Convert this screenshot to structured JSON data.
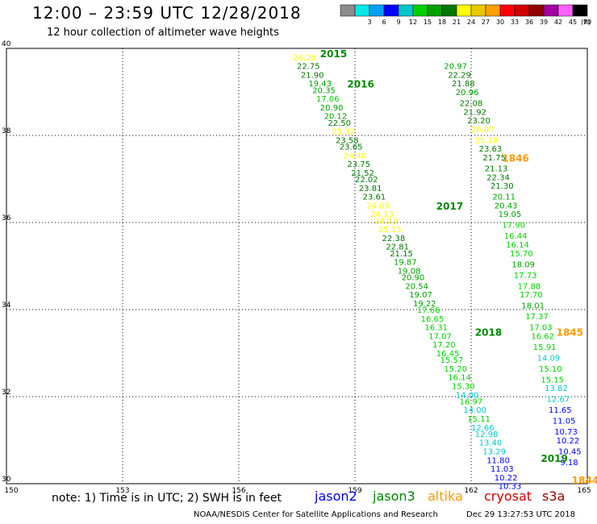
{
  "header": {
    "title": "12:00 – 23:59 UTC 12/28/2018",
    "subtitle": "12 hour collection of altimeter wave heights"
  },
  "color_scale": {
    "unit": "(ft)",
    "bins": [
      {
        "label": "",
        "color": "#8c8c8c"
      },
      {
        "label": "3",
        "color": "#00e8e8"
      },
      {
        "label": "6",
        "color": "#00a0f0"
      },
      {
        "label": "9",
        "color": "#0000ff"
      },
      {
        "label": "12",
        "color": "#00c8c8"
      },
      {
        "label": "15",
        "color": "#00d000"
      },
      {
        "label": "18",
        "color": "#00a000"
      },
      {
        "label": "21",
        "color": "#007800"
      },
      {
        "label": "24",
        "color": "#ffff00"
      },
      {
        "label": "27",
        "color": "#e8c800"
      },
      {
        "label": "30",
        "color": "#ffa000"
      },
      {
        "label": "33",
        "color": "#ff0000"
      },
      {
        "label": "36",
        "color": "#d00000"
      },
      {
        "label": "39",
        "color": "#900000"
      },
      {
        "label": "42",
        "color": "#a000a0"
      },
      {
        "label": "45",
        "color": "#ff60ff"
      },
      {
        "label": "70",
        "color": "#000000"
      }
    ]
  },
  "note": "note: 1) Time is in UTC; 2) SWH is in feet",
  "satellites": [
    {
      "name": "jason2",
      "color": "#0000e0"
    },
    {
      "name": "jason3",
      "color": "#008800"
    },
    {
      "name": "altika",
      "color": "#ff9900"
    },
    {
      "name": "cryosat",
      "color": "#cc0000"
    },
    {
      "name": "s3a",
      "color": "#990000"
    }
  ],
  "footer": {
    "credit": "NOAA/NESDIS Center for Satellite Applications and Research",
    "timestamp": "Dec 29 13:27:53 UTC 2018"
  },
  "chart_data": {
    "type": "scatter",
    "xlim": [
      150,
      165
    ],
    "ylim": [
      30,
      40
    ],
    "x_ticks": [
      "150",
      "153",
      "156",
      "159",
      "162",
      "165"
    ],
    "y_ticks": [
      "30",
      "32",
      "34",
      "36",
      "38",
      "40"
    ],
    "grid": true,
    "time_labels": [
      {
        "text": "2015",
        "lon": 158.1,
        "lat": 39.8,
        "color": "#008800"
      },
      {
        "text": "2016",
        "lon": 158.8,
        "lat": 39.1,
        "color": "#008800"
      },
      {
        "text": "2017",
        "lon": 161.1,
        "lat": 36.3,
        "color": "#008800"
      },
      {
        "text": "2018",
        "lon": 162.1,
        "lat": 33.4,
        "color": "#008800"
      },
      {
        "text": "2019",
        "lon": 163.8,
        "lat": 30.5,
        "color": "#008800"
      },
      {
        "text": "1846",
        "lon": 162.8,
        "lat": 37.4,
        "color": "#ff9900"
      },
      {
        "text": "1845",
        "lon": 164.2,
        "lat": 33.4,
        "color": "#ff9900"
      },
      {
        "text": "1844",
        "lon": 164.6,
        "lat": 30.0,
        "color": "#ff9900"
      }
    ],
    "tracks": [
      {
        "satellite": "jason3",
        "points": [
          {
            "lon": 157.4,
            "lat": 39.8,
            "v": "26.28"
          },
          {
            "lon": 157.5,
            "lat": 39.6,
            "v": "22.75"
          },
          {
            "lon": 157.6,
            "lat": 39.4,
            "v": "21.90"
          },
          {
            "lon": 157.8,
            "lat": 39.2,
            "v": "19.43"
          },
          {
            "lon": 157.9,
            "lat": 39.05,
            "v": "20.35"
          },
          {
            "lon": 158.0,
            "lat": 38.85,
            "v": "17.06"
          },
          {
            "lon": 158.1,
            "lat": 38.65,
            "v": "20.90"
          },
          {
            "lon": 158.2,
            "lat": 38.45,
            "v": "20.12"
          },
          {
            "lon": 158.3,
            "lat": 38.3,
            "v": "22.50"
          },
          {
            "lon": 158.4,
            "lat": 38.1,
            "v": "25.32"
          },
          {
            "lon": 158.5,
            "lat": 37.9,
            "v": "23.58"
          },
          {
            "lon": 158.6,
            "lat": 37.75,
            "v": "23.65"
          },
          {
            "lon": 158.7,
            "lat": 37.55,
            "v": "24.40"
          },
          {
            "lon": 158.8,
            "lat": 37.35,
            "v": "23.75"
          },
          {
            "lon": 158.9,
            "lat": 37.15,
            "v": "21.52"
          },
          {
            "lon": 159.0,
            "lat": 37.0,
            "v": "22.02"
          },
          {
            "lon": 159.1,
            "lat": 36.8,
            "v": "23.81"
          },
          {
            "lon": 159.2,
            "lat": 36.6,
            "v": "23.61"
          },
          {
            "lon": 159.3,
            "lat": 36.4,
            "v": "24.05"
          },
          {
            "lon": 159.4,
            "lat": 36.2,
            "v": "24.13"
          },
          {
            "lon": 159.5,
            "lat": 36.05,
            "v": "24.23"
          },
          {
            "lon": 159.6,
            "lat": 35.85,
            "v": "25.13"
          },
          {
            "lon": 159.7,
            "lat": 35.65,
            "v": "22.38"
          },
          {
            "lon": 159.8,
            "lat": 35.45,
            "v": "22.81"
          },
          {
            "lon": 159.9,
            "lat": 35.3,
            "v": "21.15"
          },
          {
            "lon": 160.0,
            "lat": 35.1,
            "v": "19.87"
          },
          {
            "lon": 160.1,
            "lat": 34.9,
            "v": "19.08"
          },
          {
            "lon": 160.2,
            "lat": 34.75,
            "v": "20.90"
          },
          {
            "lon": 160.3,
            "lat": 34.55,
            "v": "20.54"
          },
          {
            "lon": 160.4,
            "lat": 34.35,
            "v": "19.07"
          },
          {
            "lon": 160.5,
            "lat": 34.15,
            "v": "19.22"
          },
          {
            "lon": 160.6,
            "lat": 34.0,
            "v": "17.66"
          },
          {
            "lon": 160.7,
            "lat": 33.8,
            "v": "16.65"
          },
          {
            "lon": 160.8,
            "lat": 33.6,
            "v": "16.31"
          },
          {
            "lon": 160.9,
            "lat": 33.4,
            "v": "17.07"
          },
          {
            "lon": 161.0,
            "lat": 33.2,
            "v": "17.20"
          },
          {
            "lon": 161.1,
            "lat": 33.0,
            "v": "16.45"
          },
          {
            "lon": 161.2,
            "lat": 32.85,
            "v": "15.57"
          },
          {
            "lon": 161.3,
            "lat": 32.65,
            "v": "15.20"
          },
          {
            "lon": 161.4,
            "lat": 32.45,
            "v": "16.14"
          },
          {
            "lon": 161.5,
            "lat": 32.25,
            "v": "15.30"
          },
          {
            "lon": 161.6,
            "lat": 32.05,
            "v": "14.00"
          },
          {
            "lon": 161.7,
            "lat": 31.9,
            "v": "16.97"
          },
          {
            "lon": 161.8,
            "lat": 31.7,
            "v": "14.00"
          },
          {
            "lon": 161.9,
            "lat": 31.5,
            "v": "15.11"
          },
          {
            "lon": 162.0,
            "lat": 31.3,
            "v": "12.66"
          },
          {
            "lon": 162.1,
            "lat": 31.15,
            "v": "12.98"
          },
          {
            "lon": 162.2,
            "lat": 30.95,
            "v": "13.40"
          },
          {
            "lon": 162.3,
            "lat": 30.75,
            "v": "13.29"
          },
          {
            "lon": 162.4,
            "lat": 30.55,
            "v": "11.80"
          },
          {
            "lon": 162.5,
            "lat": 30.35,
            "v": "11.03"
          },
          {
            "lon": 162.6,
            "lat": 30.15,
            "v": "10.22"
          },
          {
            "lon": 162.7,
            "lat": 29.95,
            "v": "10.33"
          }
        ]
      },
      {
        "satellite": "jason3",
        "points": [
          {
            "lon": 161.3,
            "lat": 39.6,
            "v": "20.97"
          },
          {
            "lon": 161.4,
            "lat": 39.4,
            "v": "22.29"
          },
          {
            "lon": 161.5,
            "lat": 39.2,
            "v": "21.88"
          },
          {
            "lon": 161.6,
            "lat": 39.0,
            "v": "20.96"
          },
          {
            "lon": 161.7,
            "lat": 38.75,
            "v": "22.08"
          },
          {
            "lon": 161.8,
            "lat": 38.55,
            "v": "21.92"
          },
          {
            "lon": 161.9,
            "lat": 38.35,
            "v": "23.20"
          },
          {
            "lon": 162.0,
            "lat": 38.15,
            "v": "26.07"
          },
          {
            "lon": 162.1,
            "lat": 37.9,
            "v": "25.18"
          },
          {
            "lon": 162.2,
            "lat": 37.7,
            "v": "23.63"
          },
          {
            "lon": 162.3,
            "lat": 37.5,
            "v": "21.75"
          },
          {
            "lon": 162.35,
            "lat": 37.25,
            "v": "21.13"
          },
          {
            "lon": 162.4,
            "lat": 37.05,
            "v": "22.34"
          },
          {
            "lon": 162.5,
            "lat": 36.85,
            "v": "21.30"
          },
          {
            "lon": 162.55,
            "lat": 36.6,
            "v": "20.11"
          },
          {
            "lon": 162.6,
            "lat": 36.4,
            "v": "20.43"
          },
          {
            "lon": 162.7,
            "lat": 36.2,
            "v": "19.05"
          },
          {
            "lon": 162.8,
            "lat": 35.95,
            "v": "17.90"
          },
          {
            "lon": 162.85,
            "lat": 35.7,
            "v": "16.44"
          },
          {
            "lon": 162.9,
            "lat": 35.5,
            "v": "16.14"
          },
          {
            "lon": 163.0,
            "lat": 35.3,
            "v": "15.70"
          },
          {
            "lon": 163.05,
            "lat": 35.05,
            "v": "18.09"
          },
          {
            "lon": 163.1,
            "lat": 34.8,
            "v": "17.73"
          },
          {
            "lon": 163.2,
            "lat": 34.55,
            "v": "17.88"
          },
          {
            "lon": 163.25,
            "lat": 34.35,
            "v": "17.70"
          },
          {
            "lon": 163.3,
            "lat": 34.1,
            "v": "18.01"
          },
          {
            "lon": 163.4,
            "lat": 33.85,
            "v": "17.37"
          },
          {
            "lon": 163.5,
            "lat": 33.6,
            "v": "17.03"
          },
          {
            "lon": 163.55,
            "lat": 33.4,
            "v": "16.62"
          },
          {
            "lon": 163.6,
            "lat": 33.15,
            "v": "15.91"
          },
          {
            "lon": 163.7,
            "lat": 32.9,
            "v": "14.09"
          },
          {
            "lon": 163.75,
            "lat": 32.65,
            "v": "15.10"
          },
          {
            "lon": 163.8,
            "lat": 32.4,
            "v": "15.15"
          },
          {
            "lon": 163.9,
            "lat": 32.2,
            "v": "13.82"
          },
          {
            "lon": 163.95,
            "lat": 31.95,
            "v": "12.67"
          },
          {
            "lon": 164.0,
            "lat": 31.7,
            "v": "11.65"
          },
          {
            "lon": 164.1,
            "lat": 31.45,
            "v": "11.05"
          },
          {
            "lon": 164.15,
            "lat": 31.2,
            "v": "10.73"
          },
          {
            "lon": 164.2,
            "lat": 31.0,
            "v": "10.22"
          },
          {
            "lon": 164.25,
            "lat": 30.75,
            "v": "10.45"
          },
          {
            "lon": 164.3,
            "lat": 30.5,
            "v": "9.18"
          }
        ]
      }
    ]
  }
}
